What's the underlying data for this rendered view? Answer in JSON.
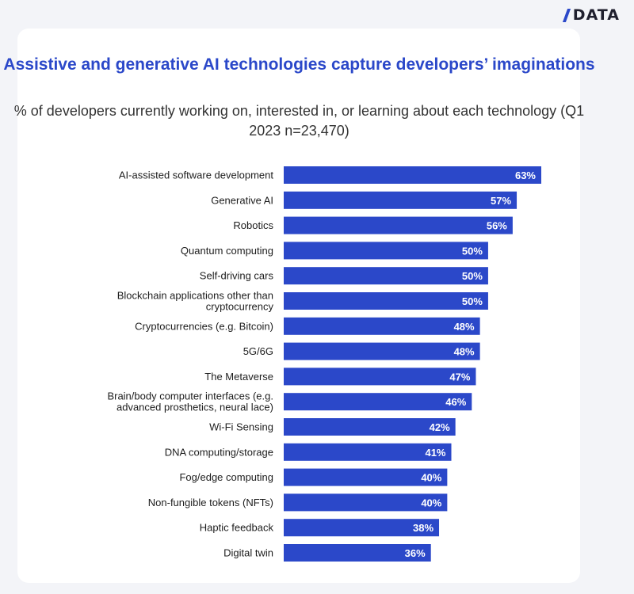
{
  "brand": {
    "text": "DATA"
  },
  "chart_data": {
    "type": "bar",
    "orientation": "horizontal",
    "title": "Assistive and generative AI technologies capture developers’ imaginations",
    "subtitle": "% of developers currently working on, interested in, or learning about each technology (Q1 2023 n=23,470)",
    "bar_color": "#2b48c9",
    "categories": [
      [
        "AI-assisted software development"
      ],
      [
        "Generative AI"
      ],
      [
        "Robotics"
      ],
      [
        "Quantum computing"
      ],
      [
        "Self-driving cars"
      ],
      [
        "Blockchain applications other than",
        "cryptocurrency"
      ],
      [
        "Cryptocurrencies (e.g. Bitcoin)"
      ],
      [
        "5G/6G"
      ],
      [
        "The Metaverse"
      ],
      [
        "Brain/body computer interfaces (e.g.",
        "advanced prosthetics, neural lace)"
      ],
      [
        "Wi-Fi Sensing"
      ],
      [
        "DNA computing/storage"
      ],
      [
        "Fog/edge computing"
      ],
      [
        "Non-fungible tokens (NFTs)"
      ],
      [
        "Haptic feedback"
      ],
      [
        "Digital twin"
      ]
    ],
    "values": [
      63,
      57,
      56,
      50,
      50,
      50,
      48,
      48,
      47,
      46,
      42,
      41,
      40,
      40,
      38,
      36
    ],
    "value_labels": [
      "63%",
      "57%",
      "56%",
      "50%",
      "50%",
      "50%",
      "48%",
      "48%",
      "47%",
      "46%",
      "42%",
      "41%",
      "40%",
      "40%",
      "38%",
      "36%"
    ],
    "xlim": [
      0,
      63
    ],
    "grid": false,
    "legend": "none"
  }
}
